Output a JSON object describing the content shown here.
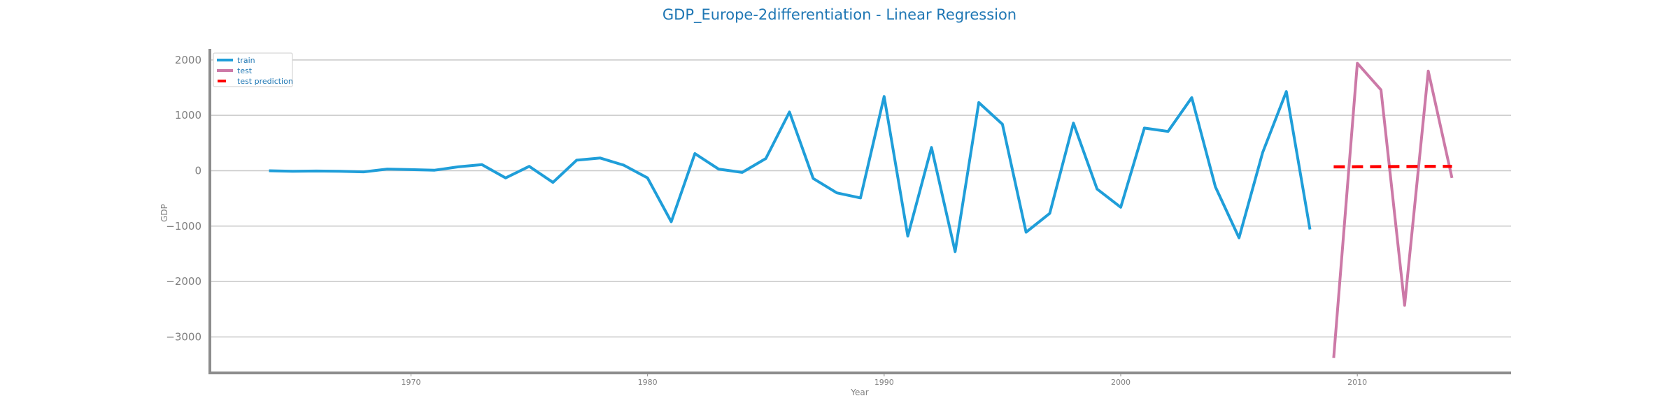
{
  "chart_data": {
    "type": "line",
    "title": "GDP_Europe-2differentiation - Linear Regression",
    "xlabel": "Year",
    "ylabel": "GDP",
    "xlim": [
      1961.5,
      2016.5
    ],
    "ylim": [
      -3650,
      2200
    ],
    "x_ticks": [
      1970,
      1980,
      1990,
      2000,
      2010
    ],
    "y_ticks": [
      -3000,
      -2000,
      -1000,
      0,
      1000,
      2000
    ],
    "y_tick_labels": [
      "−3000",
      "−2000",
      "−1000",
      "0",
      "1000",
      "2000"
    ],
    "grid": "horizontal",
    "legend_position": "top-left",
    "series": [
      {
        "name": "train",
        "color": "#1f9ed9",
        "style": "solid",
        "x": [
          1964,
          1965,
          1966,
          1967,
          1968,
          1969,
          1970,
          1971,
          1972,
          1973,
          1974,
          1975,
          1976,
          1977,
          1978,
          1979,
          1980,
          1981,
          1982,
          1983,
          1984,
          1985,
          1986,
          1987,
          1988,
          1989,
          1990,
          1991,
          1992,
          1993,
          1994,
          1995,
          1996,
          1997,
          1998,
          1999,
          2000,
          2001,
          2002,
          2003,
          2004,
          2005,
          2006,
          2007,
          2008
        ],
        "y": [
          0,
          -10,
          -5,
          -10,
          -20,
          30,
          20,
          10,
          70,
          110,
          -130,
          80,
          -210,
          190,
          230,
          100,
          -130,
          -920,
          310,
          30,
          -30,
          220,
          1060,
          -140,
          -400,
          -490,
          1340,
          -1180,
          420,
          -1460,
          1230,
          840,
          -1110,
          -770,
          860,
          -330,
          -660,
          770,
          710,
          1320,
          -290,
          -1210,
          330,
          1430,
          -1060
        ]
      },
      {
        "name": "test",
        "color": "#cc79a7",
        "style": "solid",
        "x": [
          2009,
          2010,
          2011,
          2012,
          2013,
          2014
        ],
        "y": [
          -3380,
          1940,
          1460,
          -2430,
          1800,
          -130
        ]
      },
      {
        "name": "test prediction",
        "color": "#ff0000",
        "style": "dashed",
        "x": [
          2009,
          2010,
          2011,
          2012,
          2013,
          2014
        ],
        "y": [
          70,
          72,
          74,
          76,
          78,
          80
        ]
      }
    ]
  }
}
